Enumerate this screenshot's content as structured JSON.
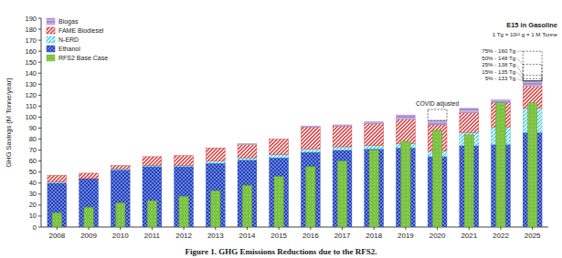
{
  "chart_data": {
    "type": "bar",
    "stacked": true,
    "grid": false,
    "legend": "top-left",
    "title": "Figure 1. GHG Emissions Reductions due to the RFS2.",
    "y_label": "GHG Savings (M Tonne/year)",
    "categories": [
      "2008",
      "2009",
      "2010",
      "2011",
      "2012",
      "2013",
      "2014",
      "2015",
      "2016",
      "2017",
      "2018",
      "2019",
      "2020",
      "2021",
      "2022",
      "2025"
    ],
    "ylim": [
      0,
      190
    ],
    "yticks": [
      0,
      10,
      20,
      30,
      40,
      50,
      60,
      70,
      80,
      90,
      100,
      110,
      120,
      130,
      140,
      150,
      160,
      170,
      180,
      190
    ],
    "series": [
      {
        "name": "Ethanol",
        "color": "#1f3fbf",
        "values": [
          40,
          44,
          52,
          55,
          55,
          58,
          61,
          63,
          68,
          70,
          71,
          72,
          64,
          74,
          75,
          86
        ]
      },
      {
        "name": "N-ERD",
        "color": "#33c3d6",
        "values": [
          1,
          0,
          1,
          1,
          1,
          2,
          2,
          3,
          3,
          3,
          3,
          4,
          5,
          12,
          16,
          22
        ]
      },
      {
        "name": "FAME Biodiesel",
        "color": "#d42a2a",
        "values": [
          6,
          5,
          3,
          8,
          9,
          12,
          12,
          14,
          20,
          19,
          20,
          22,
          24,
          18,
          22,
          20
        ]
      },
      {
        "name": "Biogas",
        "color": "#a58fd0",
        "values": [
          0,
          0,
          0,
          0,
          0,
          0,
          1,
          0,
          1,
          1,
          2,
          4,
          4,
          4,
          3,
          5
        ]
      },
      {
        "name": "RFS2 Base Case",
        "color": "#7cc242",
        "type": "overlay",
        "values": [
          13,
          18,
          22,
          24,
          28,
          33,
          38,
          46,
          55,
          60,
          70,
          78,
          88,
          84,
          113,
          113
        ]
      },
      {
        "name": "COVID adjusted",
        "color": "#444444",
        "line_style": "dashed",
        "values": [
          null,
          null,
          null,
          null,
          null,
          null,
          null,
          null,
          null,
          null,
          null,
          null,
          10,
          null,
          null,
          null
        ]
      }
    ],
    "e15_scenarios": {
      "title": "E15 in Gasoline",
      "note": "1 Tg = 10¹² g = 1 M Tonne",
      "levels": [
        {
          "label": "75% - 160 Tg",
          "value": 160
        },
        {
          "label": "50% - 148 Tg",
          "value": 148
        },
        {
          "label": "25% - 138 Tg",
          "value": 138
        },
        {
          "label": "15% - 135 Tg",
          "value": 135
        },
        {
          "label": "5% - 133 Tg",
          "value": 133
        }
      ]
    }
  }
}
